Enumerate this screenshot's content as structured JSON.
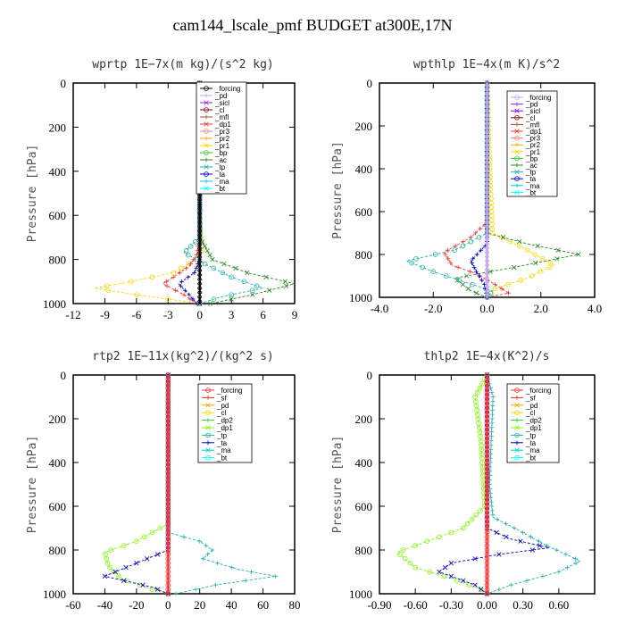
{
  "title": "cam144_lscale_pmf  BUDGET at300E,17N",
  "chart_data": [
    {
      "type": "line",
      "title": "wprtp  1E−7x(m kg)/(s^2 kg)",
      "ylabel": "Pressure [hPa]",
      "xlim": [
        -12,
        9
      ],
      "ylim": [
        1000,
        0
      ],
      "xticks": [
        -12,
        -9,
        -6,
        -3,
        0,
        3,
        6,
        9
      ],
      "xtick_labels": [
        "-12",
        "-9",
        "-6",
        "-3",
        "0",
        "3",
        "6",
        "9"
      ],
      "yticks": [
        0,
        200,
        400,
        600,
        800,
        1000
      ],
      "ytick_labels": [
        "0",
        "200",
        "400",
        "600",
        "800",
        "1000"
      ],
      "legend": [
        "_forcing",
        "_pd",
        "_sicl",
        "_cl",
        "_mfl",
        "_dp1",
        "_pr3",
        "_pr2",
        "_pr1",
        "_bp",
        "_ac",
        "_tp",
        "_ta",
        "_ma",
        "_bt"
      ],
      "legend_colors": [
        "#000000",
        "#c8a2e8",
        "#8a2be2",
        "#8b0000",
        "#a0522d",
        "#ff3030",
        "#ff7f7f",
        "#ffa500",
        "#ffd700",
        "#32cd32",
        "#228b22",
        "#20b2aa",
        "#0000cd",
        "#00ced1",
        "#00ffff"
      ],
      "series": [
        {
          "name": "_pr1",
          "color": "#ffd700",
          "values": [
            [
              0,
              0
            ],
            [
              0,
              600
            ],
            [
              0.1,
              700
            ],
            [
              0.2,
              760
            ],
            [
              -0.3,
              800
            ],
            [
              -2.5,
              860
            ],
            [
              -6.5,
              900
            ],
            [
              -10,
              930
            ],
            [
              -6,
              960
            ],
            [
              -1.5,
              990
            ],
            [
              0,
              1000
            ]
          ]
        },
        {
          "name": "_dp1",
          "color": "#ff3030",
          "values": [
            [
              0,
              0
            ],
            [
              0,
              700
            ],
            [
              -0.3,
              780
            ],
            [
              -1,
              830
            ],
            [
              -2.5,
              880
            ],
            [
              -3.5,
              910
            ],
            [
              -1.5,
              960
            ],
            [
              -0.3,
              1000
            ]
          ]
        },
        {
          "name": "_ac",
          "color": "#228b22",
          "values": [
            [
              0,
              0
            ],
            [
              0,
              700
            ],
            [
              1.2,
              800
            ],
            [
              4.5,
              860
            ],
            [
              9,
              910
            ],
            [
              5,
              960
            ],
            [
              1,
              1000
            ]
          ]
        },
        {
          "name": "_tp",
          "color": "#20b2aa",
          "values": [
            [
              0,
              0
            ],
            [
              0,
              700
            ],
            [
              -1.5,
              770
            ],
            [
              0.5,
              820
            ],
            [
              3,
              880
            ],
            [
              6,
              930
            ],
            [
              2,
              970
            ],
            [
              0,
              1000
            ]
          ]
        },
        {
          "name": "_ta",
          "color": "#0000cd",
          "values": [
            [
              0,
              0
            ],
            [
              0,
              800
            ],
            [
              -0.5,
              860
            ],
            [
              -2,
              910
            ],
            [
              -1,
              960
            ],
            [
              -0.3,
              1000
            ]
          ]
        },
        {
          "name": "_forcing",
          "color": "#000000",
          "values": [
            [
              0,
              0
            ],
            [
              0,
              1000
            ]
          ]
        }
      ]
    },
    {
      "type": "line",
      "title": "wpthlp  1E−4x(m K)/s^2",
      "ylabel": "Pressure [hPa]",
      "xlim": [
        -4,
        4
      ],
      "ylim": [
        1000,
        0
      ],
      "xticks": [
        -4,
        -2,
        0,
        2,
        4
      ],
      "xtick_labels": [
        "-4.0",
        "-2.0",
        "0.0",
        "2.0",
        "4.0"
      ],
      "yticks": [
        0,
        200,
        400,
        600,
        800,
        1000
      ],
      "ytick_labels": [
        "0",
        "200",
        "400",
        "600",
        "800",
        "1000"
      ],
      "legend": [
        "_forcing",
        "_pd",
        "_sicl",
        "_cl",
        "_mfl",
        "_dp1",
        "_pr3",
        "_pr2",
        "_pr1",
        "_bp",
        "_ac",
        "_tp",
        "_ta",
        "_ma",
        "_bt"
      ],
      "legend_colors": [
        "#c8a2e8",
        "#8a2be2",
        "#9400d3",
        "#8b0000",
        "#a0522d",
        "#ff3030",
        "#ff7f7f",
        "#ffa500",
        "#ffd700",
        "#32cd32",
        "#228b22",
        "#20b2aa",
        "#0000cd",
        "#00ced1",
        "#00ffff"
      ],
      "series": [
        {
          "name": "_pr1",
          "color": "#ffd700",
          "values": [
            [
              0,
              0
            ],
            [
              0.1,
              400
            ],
            [
              0.2,
              700
            ],
            [
              1.2,
              760
            ],
            [
              2.5,
              850
            ],
            [
              1.5,
              910
            ],
            [
              0.3,
              960
            ],
            [
              0,
              1000
            ]
          ]
        },
        {
          "name": "_dp1",
          "color": "#ff3030",
          "values": [
            [
              0,
              0
            ],
            [
              0,
              650
            ],
            [
              -0.6,
              720
            ],
            [
              -1.6,
              790
            ],
            [
              -1.3,
              850
            ],
            [
              -0.4,
              890
            ],
            [
              0.3,
              940
            ],
            [
              0.8,
              980
            ],
            [
              0,
              1000
            ]
          ]
        },
        {
          "name": "_ac",
          "color": "#228b22",
          "values": [
            [
              0,
              0
            ],
            [
              0,
              700
            ],
            [
              1.5,
              750
            ],
            [
              3.4,
              800
            ],
            [
              1,
              860
            ],
            [
              -1.2,
              910
            ],
            [
              -0.6,
              970
            ],
            [
              0,
              1000
            ]
          ]
        },
        {
          "name": "_tp",
          "color": "#20b2aa",
          "values": [
            [
              0,
              0
            ],
            [
              0,
              700
            ],
            [
              -1.2,
              780
            ],
            [
              -3,
              830
            ],
            [
              -2,
              880
            ],
            [
              -0.8,
              930
            ],
            [
              0.2,
              970
            ],
            [
              0,
              1000
            ]
          ]
        },
        {
          "name": "_ta",
          "color": "#0000cd",
          "values": [
            [
              0,
              0
            ],
            [
              0,
              750
            ],
            [
              -0.6,
              830
            ],
            [
              -0.4,
              880
            ],
            [
              -0.1,
              940
            ],
            [
              0,
              1000
            ]
          ]
        },
        {
          "name": "_forcing",
          "color": "#c8a2e8",
          "values": [
            [
              0,
              0
            ],
            [
              0,
              1000
            ]
          ]
        }
      ]
    },
    {
      "type": "line",
      "title": "rtp2  1E−11x(kg^2)/(kg^2 s)",
      "ylabel": "Pressure [hPa]",
      "xlim": [
        -60,
        80
      ],
      "ylim": [
        1000,
        0
      ],
      "xticks": [
        -60,
        -40,
        -20,
        0,
        20,
        40,
        60,
        80
      ],
      "xtick_labels": [
        "-60",
        "-40",
        "-20",
        "0",
        "20",
        "40",
        "60",
        "80"
      ],
      "yticks": [
        0,
        200,
        400,
        600,
        800,
        1000
      ],
      "ytick_labels": [
        "0",
        "200",
        "400",
        "600",
        "800",
        "1000"
      ],
      "legend": [
        "_forcing",
        "_sf",
        "_pd",
        "_cl",
        "_dp2",
        "_dp1",
        "_tp",
        "_ta",
        "_ma",
        "_bt"
      ],
      "legend_colors": [
        "#ff3030",
        "#e0301e",
        "#ffa500",
        "#ffd700",
        "#32cd32",
        "#7cfc00",
        "#20b2aa",
        "#0000cd",
        "#00ced1",
        "#00ffff"
      ],
      "series": [
        {
          "name": "_dp1",
          "color": "#7cfc00",
          "values": [
            [
              0,
              0
            ],
            [
              0,
              680
            ],
            [
              -20,
              760
            ],
            [
              -40,
              810
            ],
            [
              -38,
              870
            ],
            [
              -30,
              930
            ],
            [
              -10,
              980
            ],
            [
              0,
              1000
            ]
          ]
        },
        {
          "name": "_tp",
          "color": "#20b2aa",
          "values": [
            [
              0,
              0
            ],
            [
              0,
              720
            ],
            [
              20,
              760
            ],
            [
              28,
              800
            ],
            [
              22,
              840
            ],
            [
              45,
              890
            ],
            [
              68,
              920
            ],
            [
              30,
              960
            ],
            [
              5,
              1000
            ]
          ]
        },
        {
          "name": "_ta",
          "color": "#0000cd",
          "values": [
            [
              0,
              0
            ],
            [
              0,
              800
            ],
            [
              -20,
              860
            ],
            [
              -40,
              920
            ],
            [
              -10,
              970
            ],
            [
              0,
              1000
            ]
          ]
        },
        {
          "name": "_forcing",
          "color": "#ff3030",
          "values": [
            [
              0,
              0
            ],
            [
              0,
              1000
            ]
          ]
        }
      ]
    },
    {
      "type": "line",
      "title": "thlp2  1E−4x(K^2)/s",
      "ylabel": "Pressure [hPa]",
      "xlim": [
        -0.9,
        0.9
      ],
      "ylim": [
        1000,
        0
      ],
      "xticks": [
        -0.9,
        -0.6,
        -0.3,
        0,
        0.3,
        0.6
      ],
      "xtick_labels": [
        "-0.90",
        "-0.60",
        "-0.30",
        "0.00",
        "0.30",
        "0.60"
      ],
      "yticks": [
        0,
        200,
        400,
        600,
        800,
        1000
      ],
      "ytick_labels": [
        "0",
        "200",
        "400",
        "600",
        "800",
        "1000"
      ],
      "legend": [
        "_forcing",
        "_sf",
        "_pd",
        "_cl",
        "_dp2",
        "_dp1",
        "_tp",
        "_ta",
        "_ma",
        "_bt"
      ],
      "legend_colors": [
        "#ff3030",
        "#e0301e",
        "#ffa500",
        "#ffd700",
        "#32cd32",
        "#7cfc00",
        "#20b2aa",
        "#0000cd",
        "#00ced1",
        "#00ffff"
      ],
      "series": [
        {
          "name": "_dp1",
          "color": "#7cfc00",
          "values": [
            [
              0,
              0
            ],
            [
              -0.1,
              100
            ],
            [
              -0.05,
              300
            ],
            [
              -0.02,
              600
            ],
            [
              -0.2,
              700
            ],
            [
              -0.5,
              760
            ],
            [
              -0.75,
              810
            ],
            [
              -0.6,
              880
            ],
            [
              -0.3,
              930
            ],
            [
              -0.05,
              980
            ],
            [
              0,
              1000
            ]
          ]
        },
        {
          "name": "_tp",
          "color": "#20b2aa",
          "values": [
            [
              0,
              0
            ],
            [
              0.05,
              100
            ],
            [
              0.02,
              500
            ],
            [
              0.05,
              650
            ],
            [
              0.3,
              720
            ],
            [
              0.5,
              780
            ],
            [
              0.78,
              850
            ],
            [
              0.6,
              900
            ],
            [
              0.2,
              960
            ],
            [
              0,
              1000
            ]
          ]
        },
        {
          "name": "_ta",
          "color": "#0000cd",
          "values": [
            [
              0,
              0
            ],
            [
              0,
              700
            ],
            [
              0.2,
              750
            ],
            [
              0.52,
              790
            ],
            [
              0.1,
              820
            ],
            [
              -0.3,
              860
            ],
            [
              -0.4,
              900
            ],
            [
              -0.1,
              960
            ],
            [
              0,
              1000
            ]
          ]
        },
        {
          "name": "_forcing",
          "color": "#ff3030",
          "values": [
            [
              0,
              0
            ],
            [
              0,
              1000
            ]
          ]
        }
      ]
    }
  ]
}
